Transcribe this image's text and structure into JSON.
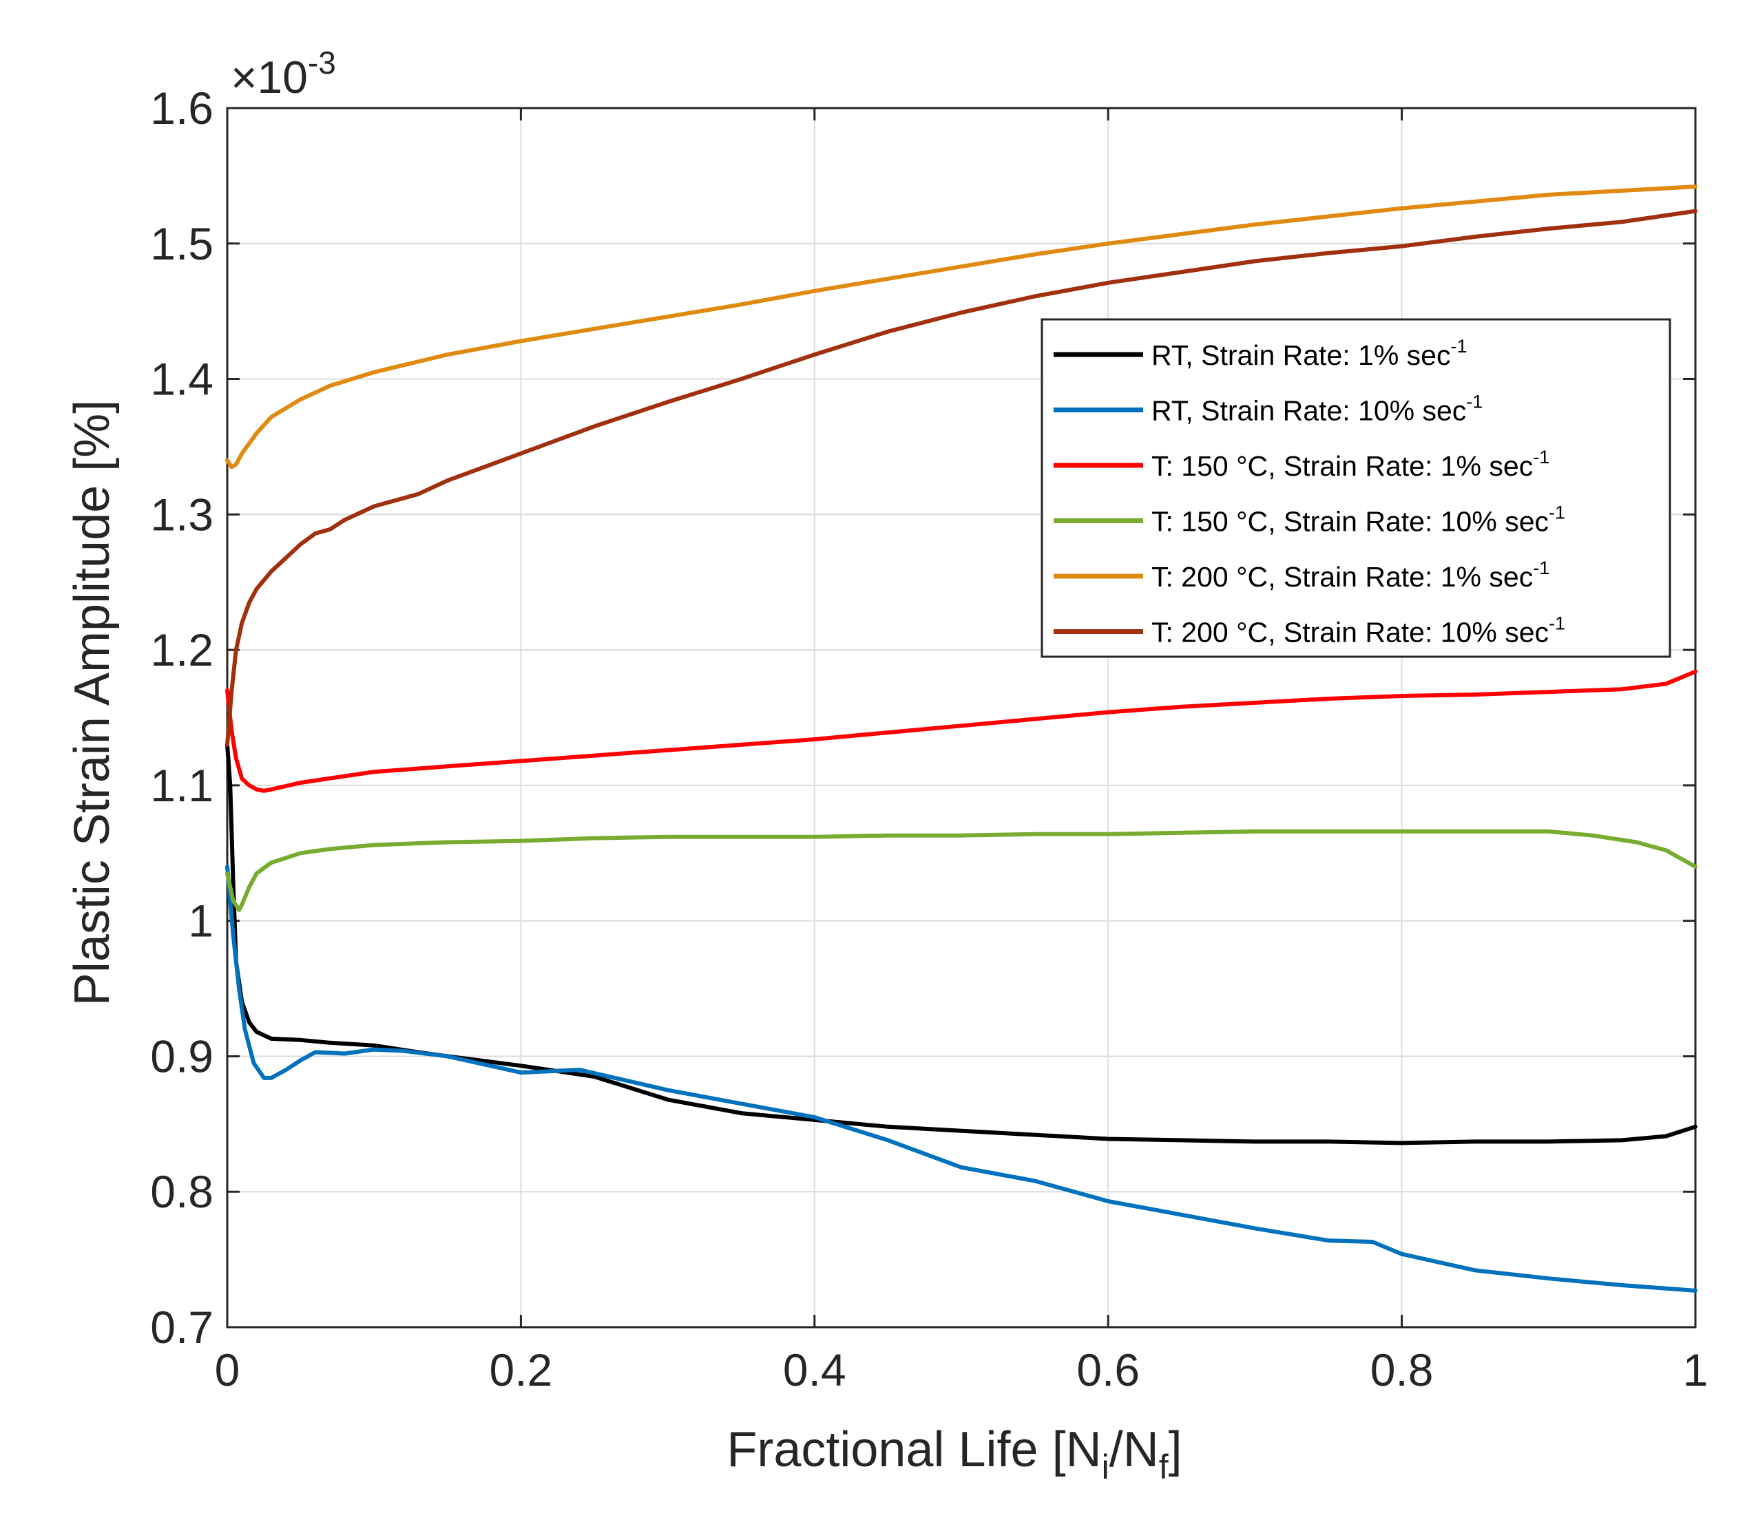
{
  "chart_data": {
    "type": "line",
    "title": "",
    "xlabel": "Fractional Life [N",
    "xlabel_sub1": "i",
    "xlabel_mid": "/N",
    "xlabel_sub2": "f",
    "xlabel_end": "]",
    "ylabel": "Plastic Strain Amplitude [%]",
    "y_multiplier": {
      "base": "×10",
      "exponent": "-3"
    },
    "xlim": [
      0,
      1
    ],
    "ylim": [
      0.7,
      1.6
    ],
    "xticks": [
      0,
      0.2,
      0.4,
      0.6,
      0.8,
      1
    ],
    "xtick_labels": [
      "0",
      "0.2",
      "0.4",
      "0.6",
      "0.8",
      "1"
    ],
    "yticks": [
      0.7,
      0.8,
      0.9,
      1.0,
      1.1,
      1.2,
      1.3,
      1.4,
      1.5,
      1.6
    ],
    "ytick_labels": [
      "0.7",
      "0.8",
      "0.9",
      "1",
      "1.1",
      "1.2",
      "1.3",
      "1.4",
      "1.5",
      "1.6"
    ],
    "grid": true,
    "legend_position": "upper-right",
    "series": [
      {
        "name": "RT, Strain Rate: 1% sec",
        "sup": "-1",
        "color": "#000000",
        "x": [
          0,
          0.002,
          0.004,
          0.006,
          0.01,
          0.015,
          0.02,
          0.03,
          0.05,
          0.07,
          0.1,
          0.13,
          0.15,
          0.2,
          0.25,
          0.3,
          0.35,
          0.4,
          0.45,
          0.5,
          0.55,
          0.6,
          0.65,
          0.7,
          0.75,
          0.8,
          0.85,
          0.9,
          0.95,
          0.98,
          1.0
        ],
        "values": [
          1.13,
          1.1,
          1.03,
          0.97,
          0.94,
          0.925,
          0.918,
          0.913,
          0.912,
          0.91,
          0.908,
          0.903,
          0.9,
          0.893,
          0.885,
          0.868,
          0.858,
          0.853,
          0.848,
          0.845,
          0.842,
          0.839,
          0.838,
          0.837,
          0.837,
          0.836,
          0.837,
          0.837,
          0.838,
          0.841,
          0.848
        ]
      },
      {
        "name": "RT, Strain Rate: 10% sec",
        "sup": "-1",
        "color": "#0072BD",
        "x": [
          0,
          0.004,
          0.008,
          0.012,
          0.018,
          0.025,
          0.03,
          0.04,
          0.05,
          0.06,
          0.08,
          0.1,
          0.12,
          0.15,
          0.2,
          0.24,
          0.3,
          0.35,
          0.4,
          0.45,
          0.5,
          0.55,
          0.6,
          0.65,
          0.7,
          0.75,
          0.78,
          0.8,
          0.85,
          0.9,
          0.95,
          1.0
        ],
        "values": [
          1.04,
          0.99,
          0.95,
          0.92,
          0.895,
          0.884,
          0.884,
          0.89,
          0.897,
          0.903,
          0.902,
          0.905,
          0.904,
          0.9,
          0.888,
          0.89,
          0.875,
          0.865,
          0.855,
          0.838,
          0.818,
          0.808,
          0.793,
          0.783,
          0.773,
          0.764,
          0.763,
          0.754,
          0.742,
          0.736,
          0.731,
          0.727
        ]
      },
      {
        "name": "T: 150 °C, Strain Rate: 1% sec",
        "sup": "-1",
        "color": "#FF0000",
        "x": [
          0,
          0.003,
          0.006,
          0.01,
          0.015,
          0.02,
          0.025,
          0.03,
          0.05,
          0.1,
          0.15,
          0.2,
          0.25,
          0.3,
          0.35,
          0.4,
          0.45,
          0.5,
          0.55,
          0.6,
          0.65,
          0.7,
          0.75,
          0.8,
          0.85,
          0.9,
          0.95,
          0.98,
          1.0
        ],
        "values": [
          1.17,
          1.14,
          1.12,
          1.105,
          1.1,
          1.097,
          1.096,
          1.097,
          1.102,
          1.11,
          1.114,
          1.118,
          1.122,
          1.126,
          1.13,
          1.134,
          1.139,
          1.144,
          1.149,
          1.154,
          1.158,
          1.161,
          1.164,
          1.166,
          1.167,
          1.169,
          1.171,
          1.175,
          1.184
        ]
      },
      {
        "name": "T: 150 °C, Strain Rate: 10% sec",
        "sup": "-1",
        "color": "#77AC30",
        "x": [
          0,
          0.004,
          0.008,
          0.01,
          0.015,
          0.02,
          0.03,
          0.05,
          0.07,
          0.1,
          0.15,
          0.2,
          0.25,
          0.3,
          0.35,
          0.4,
          0.45,
          0.5,
          0.55,
          0.6,
          0.65,
          0.7,
          0.75,
          0.8,
          0.85,
          0.9,
          0.93,
          0.96,
          0.98,
          1.0
        ],
        "values": [
          1.035,
          1.015,
          1.008,
          1.012,
          1.025,
          1.035,
          1.043,
          1.05,
          1.053,
          1.056,
          1.058,
          1.059,
          1.061,
          1.062,
          1.062,
          1.062,
          1.063,
          1.063,
          1.064,
          1.064,
          1.065,
          1.066,
          1.066,
          1.066,
          1.066,
          1.066,
          1.063,
          1.058,
          1.052,
          1.04
        ]
      },
      {
        "name": "T: 200 °C, Strain Rate: 1% sec",
        "sup": "-1",
        "color": "#E08A12",
        "x": [
          0,
          0.003,
          0.006,
          0.01,
          0.02,
          0.03,
          0.05,
          0.07,
          0.1,
          0.15,
          0.2,
          0.25,
          0.3,
          0.35,
          0.4,
          0.45,
          0.5,
          0.55,
          0.6,
          0.65,
          0.7,
          0.75,
          0.8,
          0.85,
          0.9,
          0.95,
          1.0
        ],
        "values": [
          1.34,
          1.335,
          1.337,
          1.345,
          1.36,
          1.372,
          1.385,
          1.395,
          1.405,
          1.418,
          1.428,
          1.437,
          1.446,
          1.455,
          1.465,
          1.474,
          1.483,
          1.492,
          1.5,
          1.507,
          1.514,
          1.52,
          1.526,
          1.531,
          1.536,
          1.539,
          1.542
        ]
      },
      {
        "name": "T: 200 °C, Strain Rate: 10% sec",
        "sup": "-1",
        "color": "#A0300E",
        "x": [
          0,
          0.003,
          0.006,
          0.01,
          0.015,
          0.02,
          0.03,
          0.04,
          0.05,
          0.06,
          0.07,
          0.08,
          0.1,
          0.13,
          0.15,
          0.2,
          0.25,
          0.3,
          0.35,
          0.4,
          0.45,
          0.5,
          0.55,
          0.6,
          0.65,
          0.7,
          0.75,
          0.8,
          0.85,
          0.9,
          0.95,
          1.0
        ],
        "values": [
          1.13,
          1.17,
          1.2,
          1.22,
          1.235,
          1.245,
          1.258,
          1.268,
          1.278,
          1.286,
          1.289,
          1.296,
          1.306,
          1.315,
          1.325,
          1.345,
          1.365,
          1.383,
          1.4,
          1.418,
          1.435,
          1.449,
          1.461,
          1.471,
          1.479,
          1.487,
          1.493,
          1.498,
          1.505,
          1.511,
          1.516,
          1.524
        ]
      }
    ]
  }
}
